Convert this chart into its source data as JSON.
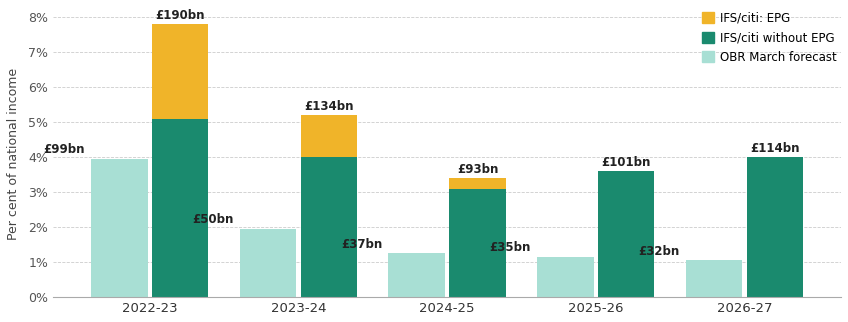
{
  "years": [
    "2022-23",
    "2023-24",
    "2024-25",
    "2025-26",
    "2026-27"
  ],
  "obr": [
    3.95,
    1.95,
    1.25,
    1.15,
    1.05
  ],
  "ifs_no_epg": [
    5.1,
    4.0,
    3.1,
    3.6,
    4.0
  ],
  "ifs_epg": [
    2.7,
    1.2,
    0.3,
    0.0,
    0.0
  ],
  "obr_labels": [
    "£99bn",
    "£50bn",
    "£37bn",
    "£35bn",
    "£32bn"
  ],
  "ifs_labels": [
    "£190bn",
    "£134bn",
    "£93bn",
    "£101bn",
    "£114bn"
  ],
  "color_obr": "#a8dfd4",
  "color_ifs_no_epg": "#1a8a6e",
  "color_ifs_epg": "#f0b429",
  "ylabel": "Per cent of national income",
  "ylim": [
    0,
    8.2
  ],
  "yticks": [
    0,
    1,
    2,
    3,
    4,
    5,
    6,
    7,
    8
  ],
  "ytick_labels": [
    "0%",
    "1%",
    "2%",
    "3%",
    "4%",
    "5%",
    "6%",
    "7%",
    "8%"
  ],
  "legend_epg": "IFS/citi: EPG",
  "legend_no_epg": "IFS/citi without EPG",
  "legend_obr": "OBR March forecast",
  "bar_width": 0.38,
  "background_color": "#ffffff"
}
